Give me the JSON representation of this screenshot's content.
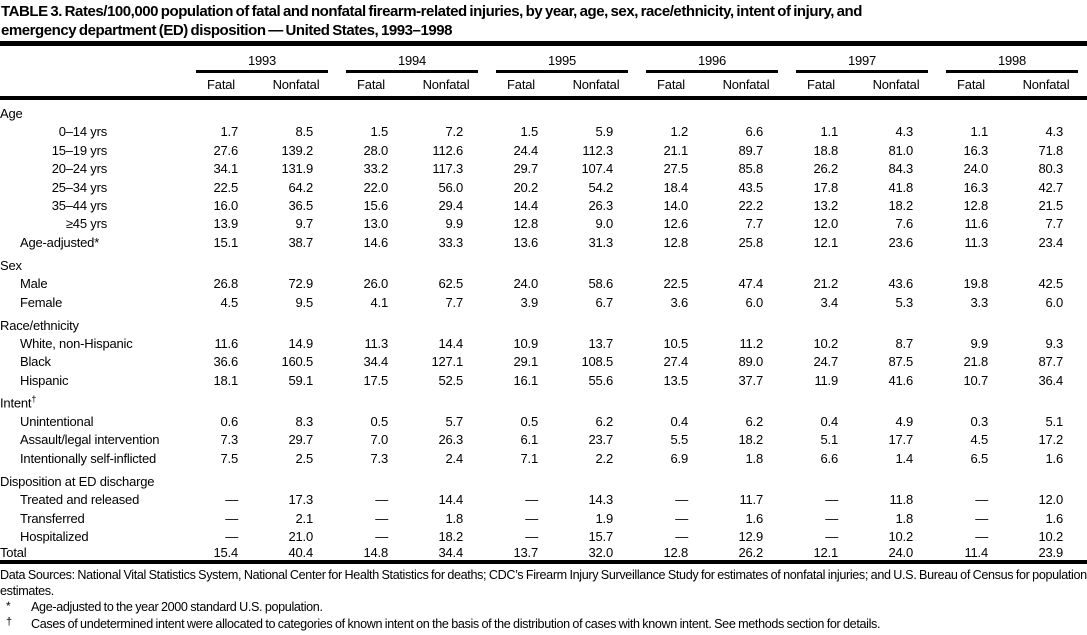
{
  "title": {
    "line1": "TABLE 3. Rates/100,000 population of fatal and nonfatal firearm-related injuries, by year, age, sex, race/ethnicity, intent of injury, and",
    "line2": "emergency department (ED) disposition — United States, 1993–1998"
  },
  "table": {
    "years": [
      "1993",
      "1994",
      "1995",
      "1996",
      "1997",
      "1998"
    ],
    "subheaders": [
      "Fatal",
      "Nonfatal"
    ],
    "sections": [
      {
        "label": "Age",
        "rows": [
          {
            "label": "0–14 yrs",
            "indent": "range",
            "values": [
              "1.7",
              "8.5",
              "1.5",
              "7.2",
              "1.5",
              "5.9",
              "1.2",
              "6.6",
              "1.1",
              "4.3",
              "1.1",
              "4.3"
            ]
          },
          {
            "label": "15–19 yrs",
            "indent": "range",
            "values": [
              "27.6",
              "139.2",
              "28.0",
              "112.6",
              "24.4",
              "112.3",
              "21.1",
              "89.7",
              "18.8",
              "81.0",
              "16.3",
              "71.8"
            ]
          },
          {
            "label": "20–24 yrs",
            "indent": "range",
            "values": [
              "34.1",
              "131.9",
              "33.2",
              "117.3",
              "29.7",
              "107.4",
              "27.5",
              "85.8",
              "26.2",
              "84.3",
              "24.0",
              "80.3"
            ]
          },
          {
            "label": "25–34 yrs",
            "indent": "range",
            "values": [
              "22.5",
              "64.2",
              "22.0",
              "56.0",
              "20.2",
              "54.2",
              "18.4",
              "43.5",
              "17.8",
              "41.8",
              "16.3",
              "42.7"
            ]
          },
          {
            "label": "35–44 yrs",
            "indent": "range",
            "values": [
              "16.0",
              "36.5",
              "15.6",
              "29.4",
              "14.4",
              "26.3",
              "14.0",
              "22.2",
              "13.2",
              "18.2",
              "12.8",
              "21.5"
            ]
          },
          {
            "label": "≥45 yrs",
            "indent": "range",
            "values": [
              "13.9",
              "9.7",
              "13.0",
              "9.9",
              "12.8",
              "9.0",
              "12.6",
              "7.7",
              "12.0",
              "7.6",
              "11.6",
              "7.7"
            ]
          },
          {
            "label": "Age-adjusted*",
            "indent": "normal",
            "values": [
              "15.1",
              "38.7",
              "14.6",
              "33.3",
              "13.6",
              "31.3",
              "12.8",
              "25.8",
              "12.1",
              "23.6",
              "11.3",
              "23.4"
            ]
          }
        ]
      },
      {
        "label": "Sex",
        "rows": [
          {
            "label": "Male",
            "indent": "normal",
            "values": [
              "26.8",
              "72.9",
              "26.0",
              "62.5",
              "24.0",
              "58.6",
              "22.5",
              "47.4",
              "21.2",
              "43.6",
              "19.8",
              "42.5"
            ]
          },
          {
            "label": "Female",
            "indent": "normal",
            "values": [
              "4.5",
              "9.5",
              "4.1",
              "7.7",
              "3.9",
              "6.7",
              "3.6",
              "6.0",
              "3.4",
              "5.3",
              "3.3",
              "6.0"
            ]
          }
        ]
      },
      {
        "label": "Race/ethnicity",
        "rows": [
          {
            "label": "White, non-Hispanic",
            "indent": "normal",
            "values": [
              "11.6",
              "14.9",
              "11.3",
              "14.4",
              "10.9",
              "13.7",
              "10.5",
              "11.2",
              "10.2",
              "8.7",
              "9.9",
              "9.3"
            ]
          },
          {
            "label": "Black",
            "indent": "normal",
            "values": [
              "36.6",
              "160.5",
              "34.4",
              "127.1",
              "29.1",
              "108.5",
              "27.4",
              "89.0",
              "24.7",
              "87.5",
              "21.8",
              "87.7"
            ]
          },
          {
            "label": "Hispanic",
            "indent": "normal",
            "values": [
              "18.1",
              "59.1",
              "17.5",
              "52.5",
              "16.1",
              "55.6",
              "13.5",
              "37.7",
              "11.9",
              "41.6",
              "10.7",
              "36.4"
            ]
          }
        ]
      },
      {
        "label": "Intent",
        "marker": "†",
        "rows": [
          {
            "label": "Unintentional",
            "indent": "normal",
            "values": [
              "0.6",
              "8.3",
              "0.5",
              "5.7",
              "0.5",
              "6.2",
              "0.4",
              "6.2",
              "0.4",
              "4.9",
              "0.3",
              "5.1"
            ]
          },
          {
            "label": "Assault/legal intervention",
            "indent": "normal",
            "values": [
              "7.3",
              "29.7",
              "7.0",
              "26.3",
              "6.1",
              "23.7",
              "5.5",
              "18.2",
              "5.1",
              "17.7",
              "4.5",
              "17.2"
            ]
          },
          {
            "label": "Intentionally self-inflicted",
            "indent": "normal",
            "values": [
              "7.5",
              "2.5",
              "7.3",
              "2.4",
              "7.1",
              "2.2",
              "6.9",
              "1.8",
              "6.6",
              "1.4",
              "6.5",
              "1.6"
            ]
          }
        ]
      },
      {
        "label": "Disposition at ED discharge",
        "rows": [
          {
            "label": "Treated and released",
            "indent": "normal",
            "values": [
              "—",
              "17.3",
              "—",
              "14.4",
              "—",
              "14.3",
              "—",
              "11.7",
              "—",
              "11.8",
              "—",
              "12.0"
            ]
          },
          {
            "label": "Transferred",
            "indent": "normal",
            "values": [
              "—",
              "2.1",
              "—",
              "1.8",
              "—",
              "1.9",
              "—",
              "1.6",
              "—",
              "1.8",
              "—",
              "1.6"
            ]
          },
          {
            "label": "Hospitalized",
            "indent": "normal",
            "values": [
              "—",
              "21.0",
              "—",
              "18.2",
              "—",
              "15.7",
              "—",
              "12.9",
              "—",
              "10.2",
              "—",
              "10.2"
            ]
          }
        ]
      }
    ],
    "total_row": {
      "label": "Total",
      "values": [
        "15.4",
        "40.4",
        "14.8",
        "34.4",
        "13.7",
        "32.0",
        "12.8",
        "26.2",
        "12.1",
        "24.0",
        "11.4",
        "23.9"
      ]
    }
  },
  "footnotes": {
    "data_sources": "Data Sources: National Vital Statistics System, National Center for Health Statistics for deaths; CDC’s Firearm Injury Surveillance Study for estimates of nonfatal injuries; and U.S. Bureau of Census for population estimates.",
    "age_adjusted": {
      "marker": "*",
      "text": "Age-adjusted to the year 2000 standard U.S. population."
    },
    "intent": {
      "marker": "†",
      "text": "Cases of undetermined intent were allocated to categories of known intent on the basis of the distribution of cases with known intent. See methods section for details."
    }
  }
}
